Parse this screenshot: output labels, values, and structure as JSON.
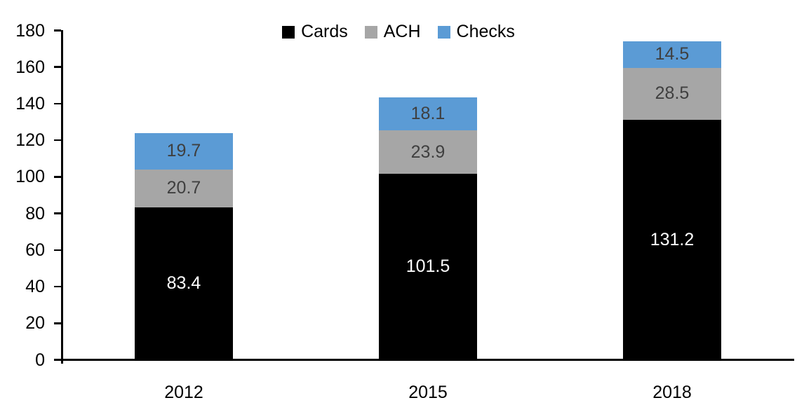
{
  "chart_data": {
    "type": "bar",
    "stacked": true,
    "title": "",
    "xlabel": "",
    "ylabel": "",
    "categories": [
      "2012",
      "2015",
      "2018"
    ],
    "series": [
      {
        "name": "Cards",
        "color": "#000000",
        "label_color": "#FFFFFF",
        "values": [
          83.4,
          101.5,
          131.2
        ]
      },
      {
        "name": "ACH",
        "color": "#A6A6A6",
        "label_color": "#3F3F3F",
        "values": [
          20.7,
          23.9,
          28.5
        ]
      },
      {
        "name": "Checks",
        "color": "#5B9BD5",
        "label_color": "#3F3F3F",
        "values": [
          19.7,
          18.1,
          14.5
        ]
      }
    ],
    "totals": [
      123.8,
      143.5,
      174.2
    ],
    "ylim": [
      0,
      180
    ],
    "y_ticks": [
      0,
      20,
      40,
      60,
      80,
      100,
      120,
      140,
      160,
      180
    ],
    "grid": false,
    "legend_position": "top-center",
    "axis_color": "#000000",
    "background_color": "#FFFFFF"
  }
}
